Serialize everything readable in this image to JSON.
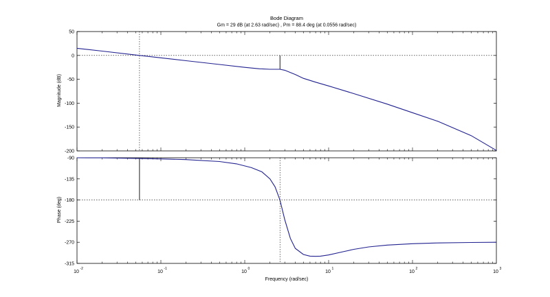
{
  "chart_data": [
    {
      "type": "line",
      "title": "Bode Diagram",
      "subtitle": "Gm = 29 dB (at 2.63 rad/sec) ,  Pm = 88.4 deg (at 0.0556 rad/sec)",
      "xlabel": "",
      "ylabel": "Magnitude (dB)",
      "xscale": "log",
      "xlim": [
        0.01,
        1000
      ],
      "ylim": [
        -200,
        50
      ],
      "yticks": [
        50,
        0,
        -50,
        -100,
        -150,
        -200
      ],
      "ytick_labels": [
        "50",
        "0",
        "-50",
        "-100",
        "-150",
        "-200"
      ],
      "reference_line": 0,
      "series": [
        {
          "name": "magnitude",
          "x": [
            0.01,
            0.02,
            0.0556,
            0.1,
            0.2,
            0.5,
            1,
            1.5,
            2,
            2.4,
            2.63,
            3,
            4,
            5,
            7,
            10,
            20,
            50,
            100,
            200,
            500,
            1000
          ],
          "y": [
            15,
            9,
            0,
            -5,
            -11,
            -19,
            -25,
            -28,
            -29,
            -29,
            -29,
            -31,
            -40,
            -48,
            -56,
            -64,
            -80,
            -102,
            -120,
            -138,
            -168,
            -199
          ]
        }
      ],
      "markers": [
        {
          "name": "gain-margin",
          "x": 2.63,
          "y_from": -29,
          "y_to": 0
        },
        {
          "name": "crossover-guide",
          "x": 0.0556
        }
      ]
    },
    {
      "type": "line",
      "xlabel": "Frequency  (rad/sec)",
      "ylabel": "Phase (deg)",
      "xscale": "log",
      "xlim": [
        0.01,
        1000
      ],
      "ylim": [
        -315,
        -90
      ],
      "yticks": [
        -90,
        -135,
        -180,
        -225,
        -270,
        -315
      ],
      "ytick_labels": [
        "-90",
        "-135",
        "-180",
        "-225",
        "-270",
        "-315"
      ],
      "xticks": [
        0.01,
        0.1,
        1,
        10,
        100,
        1000
      ],
      "xtick_bases": [
        "10",
        "10",
        "10",
        "10",
        "10",
        "10"
      ],
      "xtick_exps": [
        "-2",
        "-1",
        "0",
        "1",
        "2",
        "3"
      ],
      "reference_line": -180,
      "series": [
        {
          "name": "phase",
          "x": [
            0.01,
            0.02,
            0.0556,
            0.1,
            0.2,
            0.5,
            0.8,
            1.2,
            1.6,
            2,
            2.3,
            2.63,
            3,
            3.5,
            4,
            5,
            6,
            7,
            8,
            10,
            15,
            20,
            30,
            50,
            100,
            200,
            500,
            1000
          ],
          "y": [
            -90,
            -90.2,
            -91.6,
            -92.5,
            -94,
            -98,
            -103,
            -111,
            -120,
            -135,
            -152,
            -180,
            -222,
            -262,
            -283,
            -296,
            -299.5,
            -300,
            -299.5,
            -297,
            -290,
            -285,
            -280,
            -276,
            -273,
            -271.5,
            -270.5,
            -270
          ]
        }
      ],
      "markers": [
        {
          "name": "phase-margin",
          "x": 0.0556,
          "y_from": -91.6,
          "y_to": -180
        },
        {
          "name": "crossover-guide",
          "x": 2.63
        }
      ]
    }
  ]
}
